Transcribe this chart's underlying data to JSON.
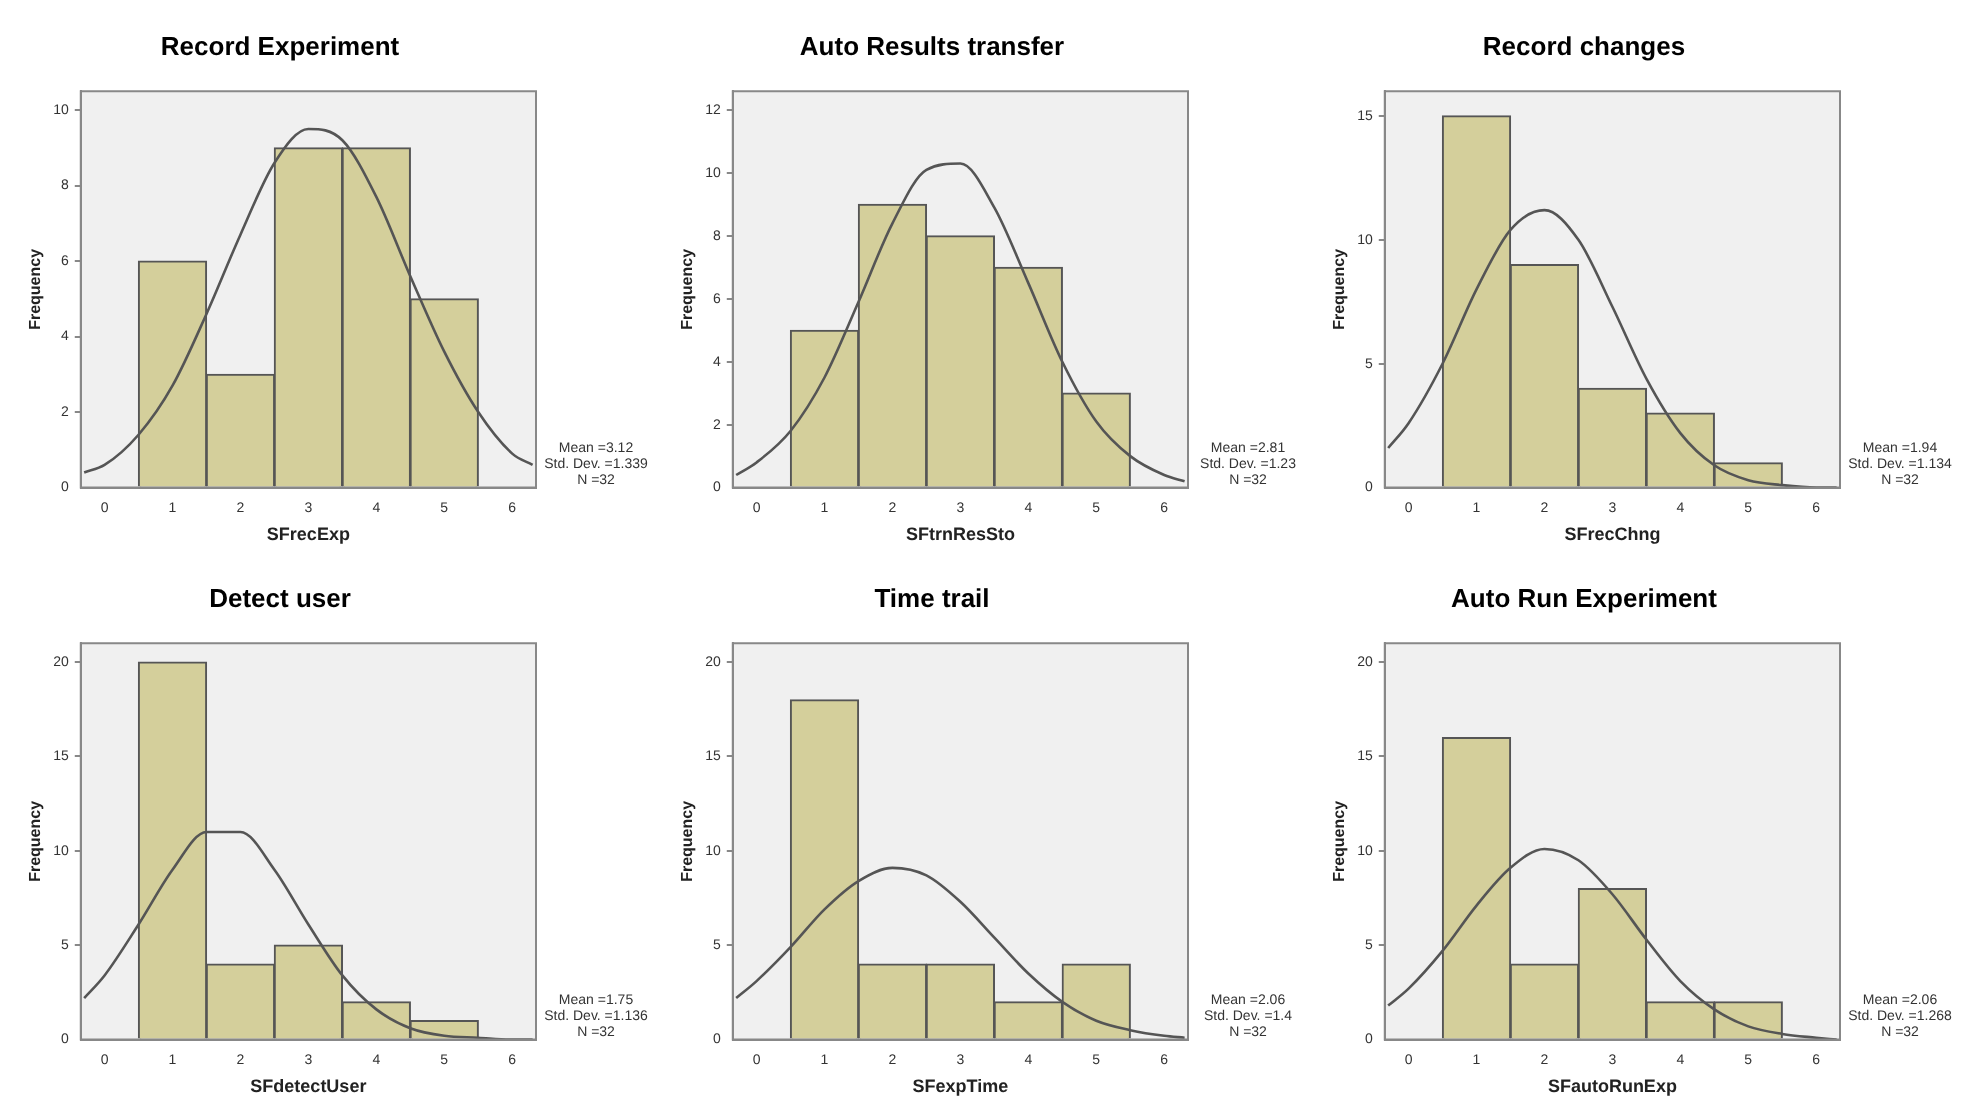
{
  "chart_data": [
    {
      "type": "histogram",
      "title": "Record Experiment",
      "xlabel": "SFrecExp",
      "ylabel": "Frequency",
      "xlim": [
        -0.35,
        6.35
      ],
      "xticks": [
        0,
        1,
        2,
        3,
        4,
        5,
        6
      ],
      "ylim": [
        0,
        10.5
      ],
      "yticks": [
        0,
        2,
        4,
        6,
        8,
        10
      ],
      "annotations": [
        "Mean =3.12",
        "Std. Dev. =1.339",
        "N =32"
      ],
      "series": [
        {
          "type": "histogram",
          "color": "#d4cf9b",
          "bins": [
            0.5,
            1.5,
            2.5,
            3.5,
            4.5,
            5.5
          ],
          "values": [
            6,
            3,
            9,
            9,
            5
          ]
        },
        {
          "type": "line",
          "color": "#555555",
          "x": [
            -0.3,
            0,
            0.5,
            1,
            1.5,
            2,
            2.5,
            3,
            3.5,
            4,
            4.5,
            5,
            5.5,
            6,
            6.3
          ],
          "values": [
            0.4,
            0.6,
            1.4,
            2.7,
            4.6,
            6.7,
            8.6,
            9.5,
            9.2,
            7.7,
            5.6,
            3.6,
            2.0,
            0.9,
            0.6
          ]
        }
      ]
    },
    {
      "type": "histogram",
      "title": "Auto Results transfer",
      "xlabel": "SFtrnResSto",
      "ylabel": "Frequency",
      "xlim": [
        -0.35,
        6.35
      ],
      "xticks": [
        0,
        1,
        2,
        3,
        4,
        5,
        6
      ],
      "ylim": [
        0,
        12.6
      ],
      "yticks": [
        0,
        2,
        4,
        6,
        8,
        10,
        12
      ],
      "annotations": [
        "Mean =2.81",
        "Std. Dev. =1.23",
        "N =32"
      ],
      "series": [
        {
          "type": "histogram",
          "color": "#d4cf9b",
          "bins": [
            0.5,
            1.5,
            2.5,
            3.5,
            4.5,
            5.5
          ],
          "values": [
            5,
            9,
            8,
            7,
            3
          ]
        },
        {
          "type": "line",
          "color": "#555555",
          "x": [
            -0.3,
            0,
            0.5,
            1,
            1.5,
            2,
            2.5,
            3,
            3.5,
            4,
            4.5,
            5,
            5.5,
            6,
            6.3
          ],
          "values": [
            0.4,
            0.8,
            1.8,
            3.5,
            5.9,
            8.4,
            10.1,
            10.3,
            8.9,
            6.5,
            4.0,
            2.1,
            1.0,
            0.4,
            0.2
          ]
        }
      ]
    },
    {
      "type": "histogram",
      "title": "Record changes",
      "xlabel": "SFrecChng",
      "ylabel": "Frequency",
      "xlim": [
        -0.35,
        6.35
      ],
      "xticks": [
        0,
        1,
        2,
        3,
        4,
        5,
        6
      ],
      "ylim": [
        0,
        16
      ],
      "yticks": [
        0,
        5,
        10,
        15
      ],
      "annotations": [
        "Mean =1.94",
        "Std. Dev. =1.134",
        "N =32"
      ],
      "series": [
        {
          "type": "histogram",
          "color": "#d4cf9b",
          "bins": [
            0.5,
            1.5,
            2.5,
            3.5,
            4.5,
            5.5
          ],
          "values": [
            15,
            9,
            4,
            3,
            1
          ]
        },
        {
          "type": "line",
          "color": "#555555",
          "x": [
            -0.3,
            0,
            0.5,
            1,
            1.5,
            2,
            2.5,
            3,
            3.5,
            4,
            4.5,
            5,
            5.5,
            6,
            6.3
          ],
          "values": [
            1.6,
            2.6,
            5.0,
            8.0,
            10.4,
            11.2,
            10.0,
            7.3,
            4.4,
            2.2,
            0.9,
            0.3,
            0.1,
            0.0,
            0.0
          ]
        }
      ]
    },
    {
      "type": "histogram",
      "title": "Detect user",
      "xlabel": "SFdetectUser",
      "ylabel": "Frequency",
      "xlim": [
        -0.35,
        6.35
      ],
      "xticks": [
        0,
        1,
        2,
        3,
        4,
        5,
        6
      ],
      "ylim": [
        0,
        21
      ],
      "yticks": [
        0,
        5,
        10,
        15,
        20
      ],
      "annotations": [
        "Mean =1.75",
        "Std. Dev. =1.136",
        "N =32"
      ],
      "series": [
        {
          "type": "histogram",
          "color": "#d4cf9b",
          "bins": [
            0.5,
            1.5,
            2.5,
            3.5,
            4.5,
            5.5
          ],
          "values": [
            20,
            4,
            5,
            2,
            1
          ]
        },
        {
          "type": "line",
          "color": "#555555",
          "x": [
            -0.3,
            0,
            0.5,
            1,
            1.5,
            2,
            2.5,
            3,
            3.5,
            4,
            4.5,
            5,
            5.5,
            6,
            6.3
          ],
          "values": [
            2.2,
            3.4,
            6.1,
            9.0,
            11.0,
            11.0,
            9.0,
            6.1,
            3.4,
            1.6,
            0.6,
            0.2,
            0.1,
            0.0,
            0.0
          ]
        }
      ]
    },
    {
      "type": "histogram",
      "title": "Time trail",
      "xlabel": "SFexpTime",
      "ylabel": "Frequency",
      "xlim": [
        -0.35,
        6.35
      ],
      "xticks": [
        0,
        1,
        2,
        3,
        4,
        5,
        6
      ],
      "ylim": [
        0,
        21
      ],
      "yticks": [
        0,
        5,
        10,
        15,
        20
      ],
      "annotations": [
        "Mean =2.06",
        "Std. Dev. =1.4",
        "N =32"
      ],
      "series": [
        {
          "type": "histogram",
          "color": "#d4cf9b",
          "bins": [
            0.5,
            1.5,
            2.5,
            3.5,
            4.5,
            5.5
          ],
          "values": [
            18,
            4,
            4,
            2,
            4
          ]
        },
        {
          "type": "line",
          "color": "#555555",
          "x": [
            -0.3,
            0,
            0.5,
            1,
            1.5,
            2,
            2.5,
            3,
            3.5,
            4,
            4.5,
            5,
            5.5,
            6,
            6.3
          ],
          "values": [
            2.2,
            3.1,
            4.9,
            6.9,
            8.4,
            9.1,
            8.7,
            7.3,
            5.4,
            3.5,
            2.0,
            1.0,
            0.5,
            0.2,
            0.1
          ]
        }
      ]
    },
    {
      "type": "histogram",
      "title": "Auto Run Experiment",
      "xlabel": "SFautoRunExp",
      "ylabel": "Frequency",
      "xlim": [
        -0.35,
        6.35
      ],
      "xticks": [
        0,
        1,
        2,
        3,
        4,
        5,
        6
      ],
      "ylim": [
        0,
        21
      ],
      "yticks": [
        0,
        5,
        10,
        15,
        20
      ],
      "annotations": [
        "Mean =2.06",
        "Std. Dev. =1.268",
        "N =32"
      ],
      "series": [
        {
          "type": "histogram",
          "color": "#d4cf9b",
          "bins": [
            0.5,
            1.5,
            2.5,
            3.5,
            4.5,
            5.5
          ],
          "values": [
            16,
            4,
            8,
            2,
            2
          ]
        },
        {
          "type": "line",
          "color": "#555555",
          "x": [
            -0.3,
            0,
            0.5,
            1,
            1.5,
            2,
            2.5,
            3,
            3.5,
            4,
            4.5,
            5,
            5.5,
            6,
            6.3
          ],
          "values": [
            1.8,
            2.7,
            4.7,
            7.1,
            9.1,
            10.1,
            9.5,
            7.7,
            5.3,
            3.1,
            1.6,
            0.7,
            0.3,
            0.1,
            0.0
          ]
        }
      ]
    }
  ]
}
